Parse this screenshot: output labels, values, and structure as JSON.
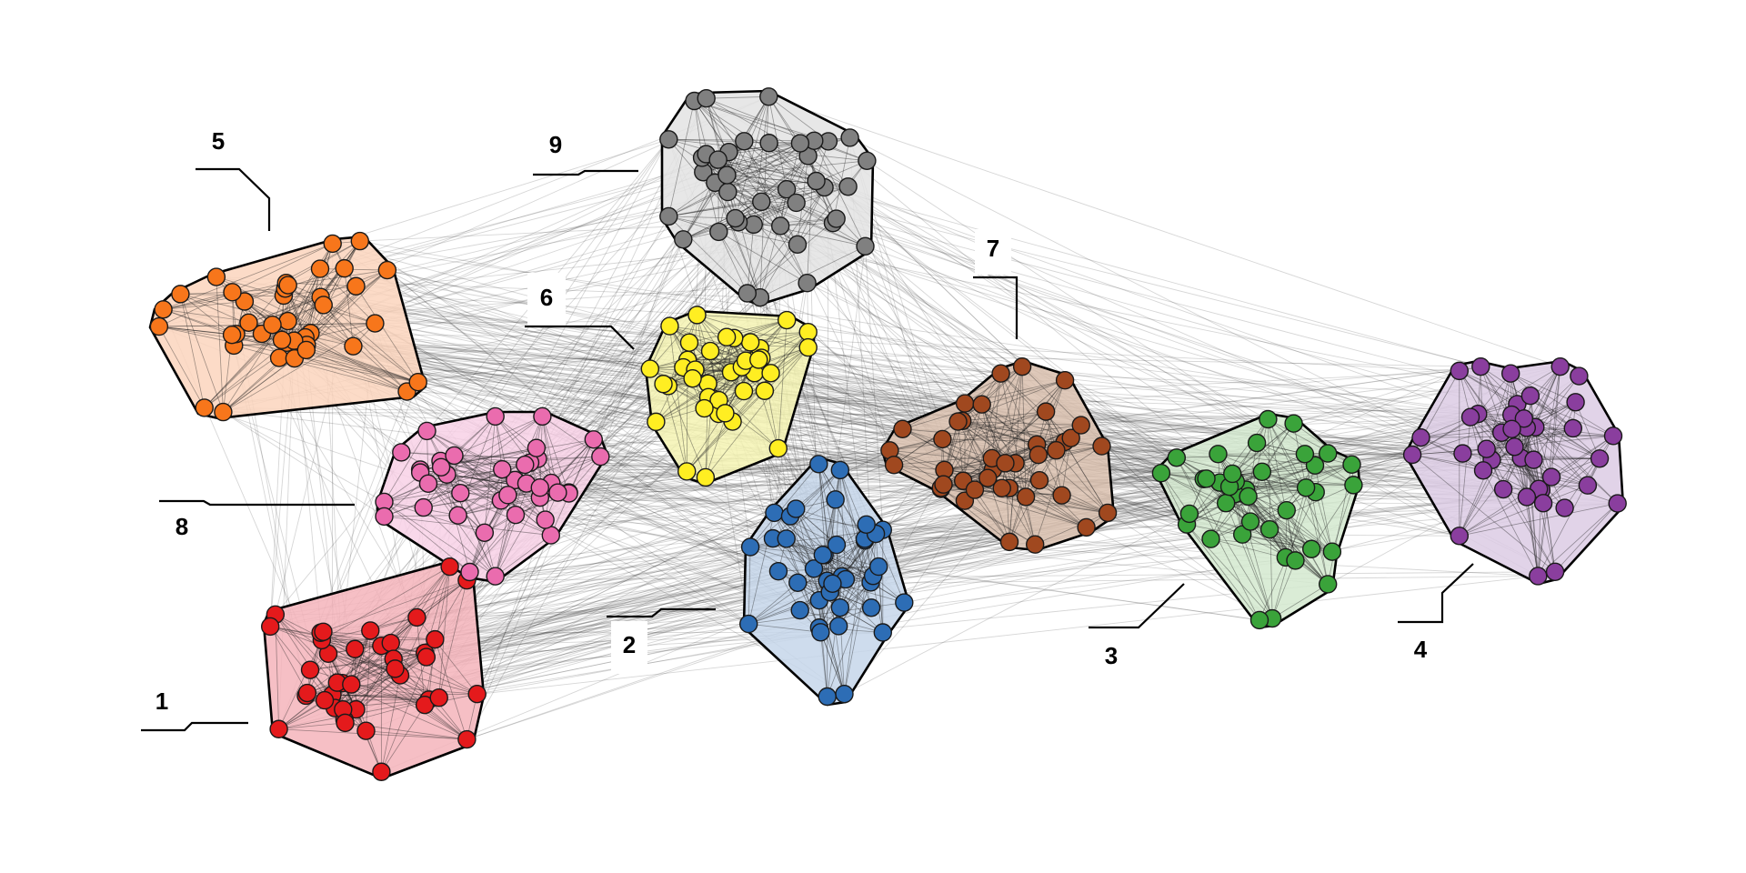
{
  "clusters": [
    {
      "id": "1",
      "label": "1",
      "color": "#e41a1c",
      "fill": "#f4b4bb",
      "node_count": 40
    },
    {
      "id": "2",
      "label": "2",
      "color": "#2d6db5",
      "fill": "#c5d6ea",
      "node_count": 40
    },
    {
      "id": "3",
      "label": "3",
      "color": "#3aa33a",
      "fill": "#d3e9cf",
      "node_count": 40
    },
    {
      "id": "4",
      "label": "4",
      "color": "#8a3e9e",
      "fill": "#dccbe4",
      "node_count": 40
    },
    {
      "id": "5",
      "label": "5",
      "color": "#f7761b",
      "fill": "#fbd5bd",
      "node_count": 40
    },
    {
      "id": "6",
      "label": "6",
      "color": "#ffee22",
      "fill": "#f5f3b3",
      "node_count": 40
    },
    {
      "id": "7",
      "label": "7",
      "color": "#a0481f",
      "fill": "#d9bfae",
      "node_count": 40
    },
    {
      "id": "8",
      "label": "8",
      "color": "#ea6cae",
      "fill": "#f8d1e6",
      "node_count": 40
    },
    {
      "id": "9",
      "label": "9",
      "color": "#808080",
      "fill": "#e3e3e3",
      "node_count": 40
    }
  ]
}
